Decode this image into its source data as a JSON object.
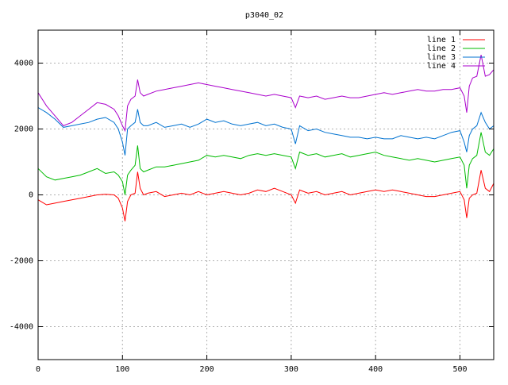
{
  "chart_data": {
    "type": "line",
    "title": "p3040_02",
    "xlabel": "",
    "ylabel": "",
    "xlim": [
      0,
      540
    ],
    "ylim": [
      -5000,
      5000
    ],
    "x_ticks": [
      0,
      100,
      200,
      300,
      400,
      500
    ],
    "y_ticks": [
      -4000,
      -2000,
      0,
      2000,
      4000
    ],
    "x_tick_labels": [
      "0",
      "100",
      "200",
      "300",
      "400",
      "500"
    ],
    "y_tick_labels": [
      "-4000",
      "-2000",
      "0",
      "2000",
      "4000"
    ],
    "grid": true,
    "legend_position": "top-right",
    "series": [
      {
        "name": "line 1",
        "color": "#ff0000",
        "x": [
          0,
          10,
          20,
          30,
          40,
          50,
          60,
          70,
          80,
          90,
          95,
          100,
          103,
          106,
          110,
          115,
          118,
          121,
          125,
          130,
          140,
          150,
          160,
          170,
          180,
          190,
          200,
          210,
          220,
          230,
          240,
          250,
          260,
          270,
          280,
          290,
          300,
          305,
          310,
          320,
          330,
          340,
          350,
          360,
          370,
          380,
          390,
          400,
          410,
          420,
          430,
          440,
          450,
          460,
          470,
          480,
          490,
          500,
          505,
          508,
          511,
          515,
          520,
          525,
          530,
          535,
          540
        ],
        "y": [
          -150,
          -300,
          -250,
          -200,
          -150,
          -100,
          -50,
          0,
          20,
          0,
          -100,
          -400,
          -800,
          -200,
          0,
          50,
          700,
          200,
          0,
          50,
          100,
          -50,
          0,
          50,
          0,
          100,
          0,
          50,
          100,
          50,
          0,
          50,
          150,
          100,
          200,
          100,
          0,
          -250,
          150,
          50,
          100,
          0,
          50,
          100,
          0,
          50,
          100,
          150,
          100,
          150,
          100,
          50,
          0,
          -50,
          -50,
          0,
          50,
          100,
          -150,
          -700,
          -100,
          0,
          50,
          750,
          200,
          100,
          350
        ]
      },
      {
        "name": "line 2",
        "color": "#00bb00",
        "x": [
          0,
          10,
          20,
          30,
          40,
          50,
          60,
          70,
          80,
          90,
          95,
          100,
          103,
          106,
          110,
          115,
          118,
          121,
          125,
          130,
          140,
          150,
          160,
          170,
          180,
          190,
          200,
          210,
          220,
          230,
          240,
          250,
          260,
          270,
          280,
          290,
          300,
          305,
          310,
          320,
          330,
          340,
          350,
          360,
          370,
          380,
          390,
          400,
          410,
          420,
          430,
          440,
          450,
          460,
          470,
          480,
          490,
          500,
          505,
          508,
          511,
          515,
          520,
          525,
          530,
          535,
          540
        ],
        "y": [
          800,
          550,
          450,
          500,
          550,
          600,
          700,
          800,
          650,
          700,
          600,
          400,
          0,
          600,
          750,
          900,
          1500,
          800,
          700,
          750,
          850,
          850,
          900,
          950,
          1000,
          1050,
          1200,
          1150,
          1200,
          1150,
          1100,
          1200,
          1250,
          1200,
          1250,
          1200,
          1150,
          800,
          1300,
          1200,
          1250,
          1150,
          1200,
          1250,
          1150,
          1200,
          1250,
          1300,
          1200,
          1150,
          1100,
          1050,
          1100,
          1050,
          1000,
          1050,
          1100,
          1150,
          900,
          200,
          900,
          1100,
          1200,
          1900,
          1300,
          1200,
          1400
        ]
      },
      {
        "name": "line 3",
        "color": "#0072d0",
        "x": [
          0,
          10,
          20,
          30,
          40,
          50,
          60,
          70,
          80,
          90,
          95,
          100,
          103,
          106,
          110,
          115,
          118,
          121,
          125,
          130,
          140,
          150,
          160,
          170,
          180,
          190,
          200,
          210,
          220,
          230,
          240,
          250,
          260,
          270,
          280,
          290,
          300,
          305,
          310,
          320,
          330,
          340,
          350,
          360,
          370,
          380,
          390,
          400,
          410,
          420,
          430,
          440,
          450,
          460,
          470,
          480,
          490,
          500,
          505,
          508,
          511,
          515,
          520,
          525,
          530,
          535,
          540
        ],
        "y": [
          2650,
          2500,
          2300,
          2050,
          2100,
          2150,
          2200,
          2300,
          2350,
          2200,
          2000,
          1600,
          1200,
          2000,
          2100,
          2200,
          2600,
          2200,
          2100,
          2100,
          2200,
          2050,
          2100,
          2150,
          2050,
          2150,
          2300,
          2200,
          2250,
          2150,
          2100,
          2150,
          2200,
          2100,
          2150,
          2050,
          2000,
          1550,
          2100,
          1950,
          2000,
          1900,
          1850,
          1800,
          1750,
          1750,
          1700,
          1750,
          1700,
          1700,
          1800,
          1750,
          1700,
          1750,
          1700,
          1800,
          1900,
          1950,
          1600,
          1300,
          1800,
          2000,
          2100,
          2500,
          2200,
          2000,
          2100
        ]
      },
      {
        "name": "line 4",
        "color": "#aa00cc",
        "x": [
          0,
          10,
          20,
          30,
          40,
          50,
          60,
          70,
          80,
          90,
          95,
          100,
          103,
          106,
          110,
          115,
          118,
          121,
          125,
          130,
          140,
          150,
          160,
          170,
          180,
          190,
          200,
          210,
          220,
          230,
          240,
          250,
          260,
          270,
          280,
          290,
          300,
          305,
          310,
          320,
          330,
          340,
          350,
          360,
          370,
          380,
          390,
          400,
          410,
          420,
          430,
          440,
          450,
          460,
          470,
          480,
          490,
          500,
          505,
          508,
          511,
          515,
          520,
          525,
          530,
          535,
          540
        ],
        "y": [
          3100,
          2700,
          2400,
          2100,
          2200,
          2400,
          2600,
          2800,
          2750,
          2600,
          2400,
          2100,
          1950,
          2700,
          2900,
          3000,
          3500,
          3100,
          3000,
          3050,
          3150,
          3200,
          3250,
          3300,
          3350,
          3400,
          3350,
          3300,
          3250,
          3200,
          3150,
          3100,
          3050,
          3000,
          3050,
          3000,
          2950,
          2650,
          3000,
          2950,
          3000,
          2900,
          2950,
          3000,
          2950,
          2950,
          3000,
          3050,
          3100,
          3050,
          3100,
          3150,
          3200,
          3150,
          3150,
          3200,
          3200,
          3250,
          3000,
          2500,
          3300,
          3550,
          3600,
          4250,
          3600,
          3650,
          3800
        ]
      }
    ]
  }
}
